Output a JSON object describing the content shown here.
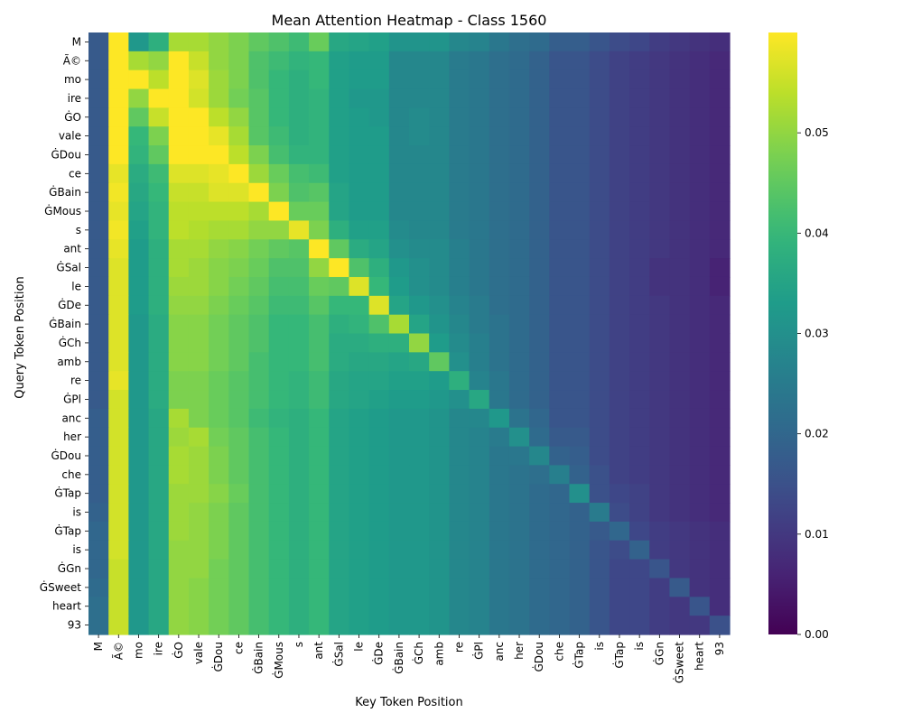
{
  "chart_data": {
    "type": "heatmap",
    "title": "Mean Attention Heatmap - Class 1560",
    "xlabel": "Key Token Position",
    "ylabel": "Query Token Position",
    "tokens": [
      "M",
      "Ã©",
      "mo",
      "ire",
      "ĠO",
      "vale",
      "ĠDou",
      "ce",
      "ĠBain",
      "ĠMous",
      "s",
      "ant",
      "ĠSal",
      "le",
      "ĠDe",
      "ĠBain",
      "ĠCh",
      "amb",
      "re",
      "ĠPl",
      "anc",
      "her",
      "ĠDou",
      "che",
      "ĠTap",
      "is",
      "ĠTap",
      "is",
      "ĠGn",
      "ĠSweet",
      "heart",
      "93"
    ],
    "colormap": "viridis",
    "vmin": 0.0,
    "vmax": 0.06,
    "colorbar_ticks": [
      "0.00",
      "0.01",
      "0.02",
      "0.03",
      "0.04",
      "0.05"
    ],
    "colorbar_tick_values": [
      0.0,
      0.01,
      0.02,
      0.03,
      0.04,
      0.05
    ],
    "values": [
      [
        0.017,
        0.06,
        0.032,
        0.038,
        0.052,
        0.052,
        0.05,
        0.048,
        0.045,
        0.043,
        0.041,
        0.046,
        0.036,
        0.035,
        0.034,
        0.031,
        0.031,
        0.031,
        0.028,
        0.027,
        0.024,
        0.022,
        0.021,
        0.018,
        0.018,
        0.016,
        0.014,
        0.013,
        0.011,
        0.01,
        0.009,
        0.008
      ],
      [
        0.017,
        0.06,
        0.052,
        0.05,
        0.06,
        0.055,
        0.05,
        0.048,
        0.043,
        0.041,
        0.039,
        0.04,
        0.034,
        0.033,
        0.033,
        0.028,
        0.028,
        0.028,
        0.025,
        0.024,
        0.022,
        0.021,
        0.019,
        0.016,
        0.016,
        0.014,
        0.012,
        0.011,
        0.01,
        0.009,
        0.008,
        0.007
      ],
      [
        0.017,
        0.06,
        0.06,
        0.054,
        0.06,
        0.057,
        0.051,
        0.048,
        0.043,
        0.04,
        0.038,
        0.04,
        0.034,
        0.033,
        0.033,
        0.028,
        0.028,
        0.028,
        0.025,
        0.024,
        0.022,
        0.021,
        0.019,
        0.016,
        0.016,
        0.014,
        0.012,
        0.011,
        0.01,
        0.009,
        0.008,
        0.007
      ],
      [
        0.017,
        0.06,
        0.05,
        0.06,
        0.06,
        0.056,
        0.051,
        0.047,
        0.044,
        0.04,
        0.038,
        0.039,
        0.034,
        0.032,
        0.032,
        0.028,
        0.028,
        0.028,
        0.025,
        0.024,
        0.022,
        0.021,
        0.019,
        0.016,
        0.016,
        0.014,
        0.012,
        0.011,
        0.01,
        0.009,
        0.008,
        0.007
      ],
      [
        0.017,
        0.06,
        0.045,
        0.055,
        0.06,
        0.06,
        0.054,
        0.05,
        0.044,
        0.04,
        0.038,
        0.039,
        0.034,
        0.033,
        0.032,
        0.028,
        0.029,
        0.028,
        0.025,
        0.024,
        0.022,
        0.021,
        0.019,
        0.016,
        0.016,
        0.014,
        0.012,
        0.011,
        0.01,
        0.009,
        0.008,
        0.007
      ],
      [
        0.017,
        0.06,
        0.04,
        0.048,
        0.06,
        0.06,
        0.058,
        0.052,
        0.044,
        0.041,
        0.038,
        0.039,
        0.034,
        0.033,
        0.033,
        0.028,
        0.029,
        0.028,
        0.025,
        0.024,
        0.022,
        0.021,
        0.019,
        0.016,
        0.016,
        0.014,
        0.012,
        0.011,
        0.01,
        0.009,
        0.008,
        0.007
      ],
      [
        0.017,
        0.06,
        0.039,
        0.045,
        0.06,
        0.06,
        0.06,
        0.054,
        0.048,
        0.042,
        0.039,
        0.039,
        0.034,
        0.033,
        0.033,
        0.028,
        0.028,
        0.028,
        0.025,
        0.024,
        0.022,
        0.021,
        0.019,
        0.016,
        0.016,
        0.014,
        0.012,
        0.011,
        0.01,
        0.009,
        0.008,
        0.007
      ],
      [
        0.017,
        0.058,
        0.037,
        0.041,
        0.057,
        0.057,
        0.058,
        0.06,
        0.051,
        0.046,
        0.042,
        0.041,
        0.034,
        0.033,
        0.033,
        0.028,
        0.028,
        0.028,
        0.025,
        0.024,
        0.022,
        0.021,
        0.019,
        0.016,
        0.016,
        0.014,
        0.012,
        0.011,
        0.01,
        0.009,
        0.008,
        0.007
      ],
      [
        0.017,
        0.059,
        0.036,
        0.04,
        0.055,
        0.055,
        0.057,
        0.057,
        0.06,
        0.048,
        0.043,
        0.044,
        0.035,
        0.033,
        0.033,
        0.028,
        0.028,
        0.028,
        0.025,
        0.024,
        0.022,
        0.021,
        0.019,
        0.016,
        0.016,
        0.014,
        0.012,
        0.011,
        0.01,
        0.009,
        0.008,
        0.007
      ],
      [
        0.017,
        0.058,
        0.035,
        0.039,
        0.054,
        0.054,
        0.054,
        0.054,
        0.052,
        0.06,
        0.046,
        0.046,
        0.035,
        0.033,
        0.033,
        0.028,
        0.028,
        0.028,
        0.025,
        0.024,
        0.022,
        0.021,
        0.019,
        0.016,
        0.016,
        0.014,
        0.012,
        0.011,
        0.01,
        0.009,
        0.008,
        0.007
      ],
      [
        0.017,
        0.059,
        0.034,
        0.039,
        0.054,
        0.053,
        0.052,
        0.052,
        0.05,
        0.05,
        0.058,
        0.048,
        0.038,
        0.034,
        0.034,
        0.029,
        0.028,
        0.028,
        0.025,
        0.024,
        0.022,
        0.021,
        0.019,
        0.016,
        0.016,
        0.014,
        0.012,
        0.011,
        0.01,
        0.009,
        0.008,
        0.007
      ],
      [
        0.017,
        0.058,
        0.033,
        0.038,
        0.052,
        0.052,
        0.05,
        0.049,
        0.047,
        0.045,
        0.044,
        0.06,
        0.045,
        0.037,
        0.035,
        0.03,
        0.029,
        0.029,
        0.026,
        0.024,
        0.022,
        0.021,
        0.019,
        0.016,
        0.016,
        0.014,
        0.012,
        0.011,
        0.01,
        0.009,
        0.008,
        0.007
      ],
      [
        0.017,
        0.057,
        0.033,
        0.038,
        0.052,
        0.051,
        0.049,
        0.048,
        0.046,
        0.043,
        0.043,
        0.05,
        0.06,
        0.043,
        0.038,
        0.032,
        0.03,
        0.029,
        0.026,
        0.024,
        0.022,
        0.021,
        0.019,
        0.016,
        0.016,
        0.014,
        0.012,
        0.011,
        0.009,
        0.009,
        0.008,
        0.006
      ],
      [
        0.017,
        0.057,
        0.033,
        0.038,
        0.051,
        0.051,
        0.049,
        0.047,
        0.045,
        0.042,
        0.042,
        0.046,
        0.045,
        0.057,
        0.04,
        0.033,
        0.03,
        0.029,
        0.026,
        0.024,
        0.022,
        0.021,
        0.019,
        0.016,
        0.016,
        0.014,
        0.012,
        0.011,
        0.009,
        0.009,
        0.008,
        0.006
      ],
      [
        0.017,
        0.057,
        0.033,
        0.038,
        0.05,
        0.05,
        0.048,
        0.046,
        0.044,
        0.041,
        0.041,
        0.044,
        0.04,
        0.04,
        0.057,
        0.035,
        0.032,
        0.03,
        0.027,
        0.025,
        0.022,
        0.021,
        0.019,
        0.016,
        0.016,
        0.014,
        0.012,
        0.011,
        0.01,
        0.009,
        0.008,
        0.007
      ],
      [
        0.017,
        0.057,
        0.032,
        0.037,
        0.049,
        0.049,
        0.047,
        0.045,
        0.043,
        0.04,
        0.04,
        0.042,
        0.038,
        0.039,
        0.043,
        0.052,
        0.035,
        0.031,
        0.028,
        0.025,
        0.023,
        0.021,
        0.019,
        0.016,
        0.016,
        0.014,
        0.012,
        0.011,
        0.01,
        0.009,
        0.008,
        0.007
      ],
      [
        0.017,
        0.057,
        0.032,
        0.037,
        0.049,
        0.049,
        0.047,
        0.045,
        0.043,
        0.04,
        0.04,
        0.042,
        0.037,
        0.037,
        0.038,
        0.038,
        0.05,
        0.033,
        0.029,
        0.026,
        0.023,
        0.021,
        0.019,
        0.016,
        0.016,
        0.014,
        0.012,
        0.011,
        0.01,
        0.009,
        0.008,
        0.007
      ],
      [
        0.017,
        0.057,
        0.032,
        0.037,
        0.049,
        0.049,
        0.047,
        0.045,
        0.042,
        0.04,
        0.04,
        0.042,
        0.037,
        0.036,
        0.036,
        0.035,
        0.036,
        0.045,
        0.03,
        0.026,
        0.023,
        0.021,
        0.019,
        0.016,
        0.016,
        0.014,
        0.012,
        0.011,
        0.01,
        0.009,
        0.008,
        0.007
      ],
      [
        0.017,
        0.058,
        0.032,
        0.037,
        0.048,
        0.048,
        0.046,
        0.044,
        0.042,
        0.04,
        0.039,
        0.041,
        0.036,
        0.035,
        0.035,
        0.034,
        0.034,
        0.033,
        0.038,
        0.027,
        0.024,
        0.021,
        0.019,
        0.016,
        0.016,
        0.014,
        0.012,
        0.011,
        0.01,
        0.009,
        0.008,
        0.007
      ],
      [
        0.017,
        0.056,
        0.032,
        0.037,
        0.048,
        0.048,
        0.046,
        0.044,
        0.042,
        0.04,
        0.039,
        0.041,
        0.036,
        0.035,
        0.034,
        0.033,
        0.033,
        0.032,
        0.03,
        0.036,
        0.024,
        0.021,
        0.019,
        0.016,
        0.016,
        0.014,
        0.012,
        0.011,
        0.01,
        0.009,
        0.008,
        0.007
      ],
      [
        0.018,
        0.056,
        0.032,
        0.036,
        0.052,
        0.048,
        0.046,
        0.044,
        0.041,
        0.039,
        0.038,
        0.04,
        0.035,
        0.034,
        0.033,
        0.032,
        0.032,
        0.031,
        0.028,
        0.028,
        0.032,
        0.023,
        0.02,
        0.016,
        0.016,
        0.014,
        0.012,
        0.011,
        0.01,
        0.009,
        0.008,
        0.007
      ],
      [
        0.018,
        0.056,
        0.032,
        0.036,
        0.051,
        0.052,
        0.047,
        0.045,
        0.042,
        0.04,
        0.038,
        0.04,
        0.035,
        0.034,
        0.033,
        0.032,
        0.032,
        0.031,
        0.028,
        0.027,
        0.025,
        0.03,
        0.021,
        0.017,
        0.017,
        0.014,
        0.012,
        0.011,
        0.01,
        0.009,
        0.008,
        0.007
      ],
      [
        0.018,
        0.056,
        0.032,
        0.036,
        0.052,
        0.051,
        0.048,
        0.045,
        0.042,
        0.04,
        0.038,
        0.04,
        0.035,
        0.034,
        0.033,
        0.032,
        0.032,
        0.031,
        0.028,
        0.027,
        0.024,
        0.024,
        0.028,
        0.019,
        0.018,
        0.014,
        0.012,
        0.011,
        0.01,
        0.009,
        0.008,
        0.007
      ],
      [
        0.018,
        0.056,
        0.032,
        0.036,
        0.052,
        0.051,
        0.048,
        0.045,
        0.042,
        0.04,
        0.038,
        0.04,
        0.035,
        0.034,
        0.033,
        0.032,
        0.032,
        0.031,
        0.028,
        0.027,
        0.024,
        0.023,
        0.022,
        0.026,
        0.019,
        0.015,
        0.012,
        0.011,
        0.01,
        0.009,
        0.008,
        0.007
      ],
      [
        0.018,
        0.056,
        0.032,
        0.036,
        0.051,
        0.051,
        0.049,
        0.046,
        0.042,
        0.04,
        0.038,
        0.04,
        0.035,
        0.034,
        0.033,
        0.032,
        0.032,
        0.031,
        0.028,
        0.027,
        0.024,
        0.023,
        0.021,
        0.02,
        0.03,
        0.015,
        0.013,
        0.012,
        0.01,
        0.009,
        0.008,
        0.007
      ],
      [
        0.019,
        0.056,
        0.032,
        0.036,
        0.051,
        0.05,
        0.048,
        0.045,
        0.042,
        0.04,
        0.038,
        0.04,
        0.035,
        0.034,
        0.033,
        0.032,
        0.032,
        0.031,
        0.028,
        0.027,
        0.024,
        0.023,
        0.021,
        0.02,
        0.019,
        0.025,
        0.014,
        0.012,
        0.01,
        0.009,
        0.008,
        0.007
      ],
      [
        0.02,
        0.056,
        0.032,
        0.036,
        0.051,
        0.05,
        0.048,
        0.045,
        0.042,
        0.04,
        0.038,
        0.04,
        0.035,
        0.034,
        0.033,
        0.032,
        0.032,
        0.031,
        0.028,
        0.027,
        0.024,
        0.023,
        0.021,
        0.02,
        0.019,
        0.017,
        0.02,
        0.013,
        0.011,
        0.01,
        0.009,
        0.008
      ],
      [
        0.02,
        0.056,
        0.032,
        0.036,
        0.05,
        0.05,
        0.048,
        0.045,
        0.042,
        0.04,
        0.038,
        0.04,
        0.035,
        0.034,
        0.033,
        0.032,
        0.032,
        0.031,
        0.028,
        0.027,
        0.024,
        0.023,
        0.021,
        0.02,
        0.019,
        0.016,
        0.014,
        0.019,
        0.011,
        0.01,
        0.009,
        0.008
      ],
      [
        0.02,
        0.055,
        0.032,
        0.036,
        0.05,
        0.05,
        0.047,
        0.045,
        0.042,
        0.04,
        0.038,
        0.04,
        0.035,
        0.034,
        0.033,
        0.032,
        0.032,
        0.031,
        0.028,
        0.027,
        0.024,
        0.023,
        0.021,
        0.02,
        0.019,
        0.016,
        0.013,
        0.013,
        0.016,
        0.01,
        0.009,
        0.008
      ],
      [
        0.021,
        0.055,
        0.032,
        0.036,
        0.05,
        0.049,
        0.047,
        0.045,
        0.042,
        0.04,
        0.038,
        0.04,
        0.035,
        0.034,
        0.033,
        0.032,
        0.032,
        0.031,
        0.028,
        0.027,
        0.024,
        0.023,
        0.021,
        0.02,
        0.019,
        0.016,
        0.013,
        0.013,
        0.011,
        0.017,
        0.009,
        0.008
      ],
      [
        0.022,
        0.055,
        0.032,
        0.036,
        0.05,
        0.049,
        0.047,
        0.045,
        0.042,
        0.04,
        0.038,
        0.04,
        0.035,
        0.034,
        0.033,
        0.032,
        0.032,
        0.031,
        0.028,
        0.027,
        0.024,
        0.023,
        0.021,
        0.02,
        0.019,
        0.016,
        0.013,
        0.013,
        0.011,
        0.01,
        0.016,
        0.008
      ],
      [
        0.022,
        0.055,
        0.032,
        0.036,
        0.05,
        0.049,
        0.047,
        0.045,
        0.042,
        0.04,
        0.038,
        0.04,
        0.035,
        0.034,
        0.033,
        0.032,
        0.032,
        0.031,
        0.028,
        0.027,
        0.024,
        0.023,
        0.021,
        0.02,
        0.019,
        0.016,
        0.013,
        0.013,
        0.011,
        0.01,
        0.01,
        0.015
      ]
    ]
  }
}
